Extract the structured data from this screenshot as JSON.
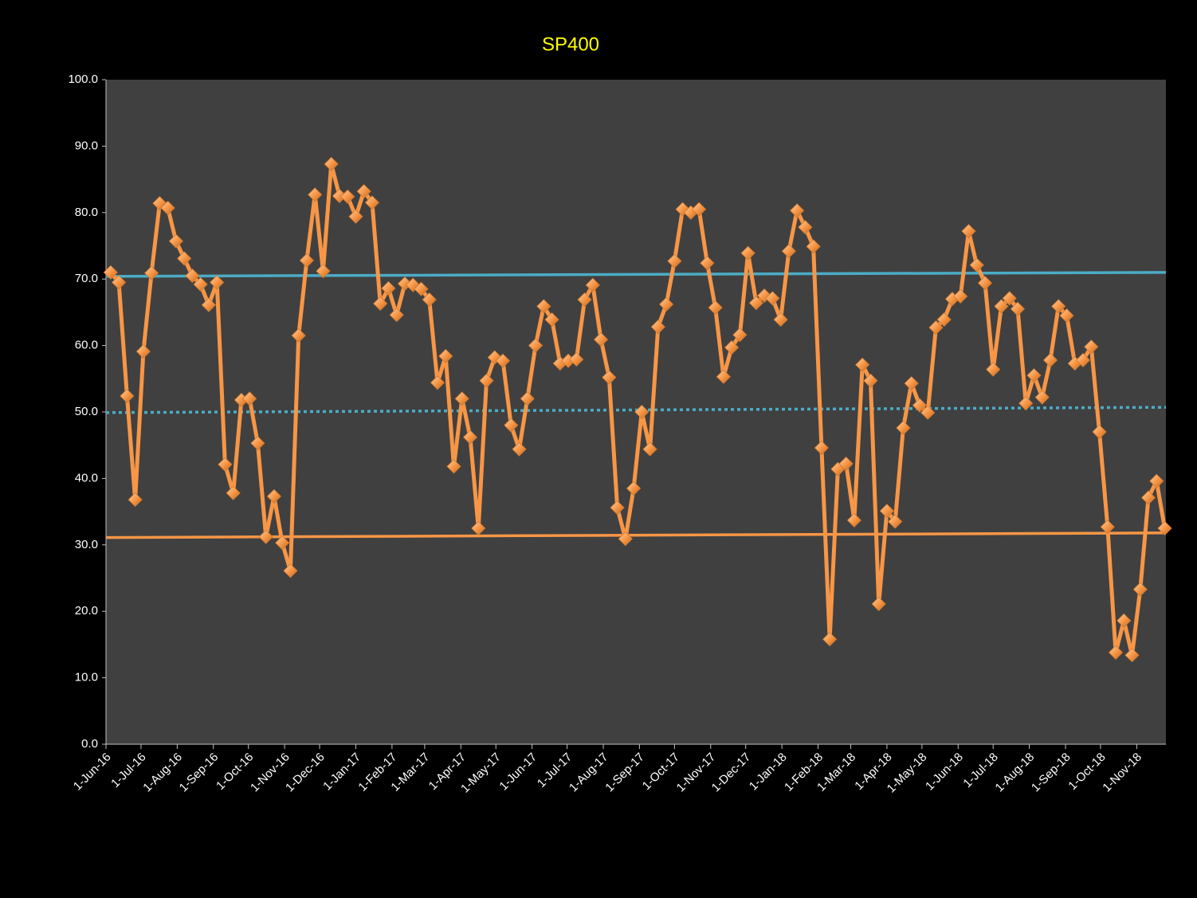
{
  "chart_data": {
    "type": "line",
    "title": "SP400",
    "x": [
      "2016-06-05",
      "2016-06-12",
      "2016-06-19",
      "2016-06-26",
      "2016-07-03",
      "2016-07-10",
      "2016-07-17",
      "2016-07-24",
      "2016-07-31",
      "2016-08-07",
      "2016-08-14",
      "2016-08-21",
      "2016-08-28",
      "2016-09-04",
      "2016-09-11",
      "2016-09-18",
      "2016-09-25",
      "2016-10-02",
      "2016-10-09",
      "2016-10-16",
      "2016-10-23",
      "2016-10-30",
      "2016-11-06",
      "2016-11-13",
      "2016-11-20",
      "2016-11-27",
      "2016-12-04",
      "2016-12-11",
      "2016-12-18",
      "2016-12-25",
      "2017-01-01",
      "2017-01-08",
      "2017-01-15",
      "2017-01-22",
      "2017-01-29",
      "2017-02-05",
      "2017-02-12",
      "2017-02-19",
      "2017-02-26",
      "2017-03-05",
      "2017-03-12",
      "2017-03-19",
      "2017-03-26",
      "2017-04-02",
      "2017-04-09",
      "2017-04-16",
      "2017-04-23",
      "2017-04-30",
      "2017-05-07",
      "2017-05-14",
      "2017-05-21",
      "2017-05-28",
      "2017-06-04",
      "2017-06-11",
      "2017-06-18",
      "2017-06-25",
      "2017-07-02",
      "2017-07-09",
      "2017-07-16",
      "2017-07-23",
      "2017-07-30",
      "2017-08-06",
      "2017-08-13",
      "2017-08-20",
      "2017-08-27",
      "2017-09-03",
      "2017-09-10",
      "2017-09-17",
      "2017-09-24",
      "2017-10-01",
      "2017-10-08",
      "2017-10-15",
      "2017-10-22",
      "2017-10-29",
      "2017-11-05",
      "2017-11-12",
      "2017-11-19",
      "2017-11-26",
      "2017-12-03",
      "2017-12-10",
      "2017-12-17",
      "2017-12-24",
      "2017-12-31",
      "2018-01-07",
      "2018-01-14",
      "2018-01-21",
      "2018-01-28",
      "2018-02-04",
      "2018-02-11",
      "2018-02-18",
      "2018-02-25",
      "2018-03-04",
      "2018-03-11",
      "2018-03-18",
      "2018-03-25",
      "2018-04-01",
      "2018-04-08",
      "2018-04-15",
      "2018-04-22",
      "2018-04-29",
      "2018-05-06",
      "2018-05-13",
      "2018-05-20",
      "2018-05-27",
      "2018-06-03",
      "2018-06-10",
      "2018-06-17",
      "2018-06-24",
      "2018-07-01",
      "2018-07-08",
      "2018-07-15",
      "2018-07-22",
      "2018-07-29",
      "2018-08-05",
      "2018-08-12",
      "2018-08-19",
      "2018-08-26",
      "2018-09-02",
      "2018-09-09",
      "2018-09-16",
      "2018-09-23",
      "2018-09-30",
      "2018-10-07",
      "2018-10-14",
      "2018-10-21",
      "2018-10-28",
      "2018-11-04",
      "2018-11-11",
      "2018-11-18",
      "2018-11-25"
    ],
    "series": [
      {
        "color": "#f79646",
        "values": [
          71.0,
          69.5,
          52.4,
          36.8,
          59.1,
          70.9,
          81.4,
          80.7,
          75.7,
          73.1,
          70.5,
          69.2,
          66.1,
          69.5,
          42.1,
          37.8,
          51.8,
          52.0,
          45.3,
          31.2,
          37.3,
          30.3,
          26.1,
          61.5,
          72.8,
          82.7,
          71.2,
          87.3,
          82.5,
          82.4,
          79.4,
          83.2,
          81.5,
          66.3,
          68.6,
          64.6,
          69.3,
          69.1,
          68.5,
          66.9,
          54.4,
          58.4,
          41.8,
          52.0,
          46.2,
          32.5,
          54.7,
          58.2,
          57.7,
          48.0,
          44.4,
          52.0,
          60.0,
          65.9,
          63.9,
          57.3,
          57.7,
          57.9,
          66.9,
          69.1,
          60.9,
          55.2,
          35.6,
          30.9,
          38.5,
          50.0,
          44.4,
          62.8,
          66.2,
          72.7,
          80.5,
          80.0,
          80.5,
          72.4,
          65.7,
          55.3,
          59.7,
          61.6,
          73.9,
          66.4,
          67.5,
          67.1,
          63.9,
          74.2,
          80.3,
          77.8,
          74.9,
          44.6,
          15.8,
          41.4,
          42.2,
          33.7,
          57.1,
          54.7,
          21.1,
          35.1,
          33.5,
          47.6,
          54.3,
          51.0,
          49.9,
          62.7,
          63.9,
          67.0,
          67.4,
          77.2,
          72.1,
          69.4,
          56.4,
          65.9,
          67.1,
          65.5,
          51.3,
          55.5,
          52.2,
          57.8,
          65.9,
          64.5,
          57.3,
          57.8,
          59.8,
          47.0,
          32.7,
          13.8,
          18.6,
          13.4,
          23.3,
          37.1,
          39.6,
          32.5
        ]
      }
    ],
    "trend_lines": [
      {
        "color": "#4bacc6",
        "dashed": false,
        "values": [
          70.4,
          71.0
        ]
      },
      {
        "color": "#4bacc6",
        "dashed": true,
        "values": [
          49.9,
          50.7
        ]
      },
      {
        "color": "#f79646",
        "dashed": false,
        "values": [
          31.1,
          31.8
        ]
      }
    ],
    "xlim": [
      "2016-06-01",
      "2018-11-26"
    ],
    "xticks": [
      {
        "value": "2016-06-01",
        "label": "1-Jun-16"
      },
      {
        "value": "2016-07-01",
        "label": "1-Jul-16"
      },
      {
        "value": "2016-08-01",
        "label": "1-Aug-16"
      },
      {
        "value": "2016-09-01",
        "label": "1-Sep-16"
      },
      {
        "value": "2016-10-01",
        "label": "1-Oct-16"
      },
      {
        "value": "2016-11-01",
        "label": "1-Nov-16"
      },
      {
        "value": "2016-12-01",
        "label": "1-Dec-16"
      },
      {
        "value": "2017-01-01",
        "label": "1-Jan-17"
      },
      {
        "value": "2017-02-01",
        "label": "1-Feb-17"
      },
      {
        "value": "2017-03-01",
        "label": "1-Mar-17"
      },
      {
        "value": "2017-04-01",
        "label": "1-Apr-17"
      },
      {
        "value": "2017-05-01",
        "label": "1-May-17"
      },
      {
        "value": "2017-06-01",
        "label": "1-Jun-17"
      },
      {
        "value": "2017-07-01",
        "label": "1-Jul-17"
      },
      {
        "value": "2017-08-01",
        "label": "1-Aug-17"
      },
      {
        "value": "2017-09-01",
        "label": "1-Sep-17"
      },
      {
        "value": "2017-10-01",
        "label": "1-Oct-17"
      },
      {
        "value": "2017-11-01",
        "label": "1-Nov-17"
      },
      {
        "value": "2017-12-01",
        "label": "1-Dec-17"
      },
      {
        "value": "2018-01-01",
        "label": "1-Jan-18"
      },
      {
        "value": "2018-02-01",
        "label": "1-Feb-18"
      },
      {
        "value": "2018-03-01",
        "label": "1-Mar-18"
      },
      {
        "value": "2018-04-01",
        "label": "1-Apr-18"
      },
      {
        "value": "2018-05-01",
        "label": "1-May-18"
      },
      {
        "value": "2018-06-01",
        "label": "1-Jun-18"
      },
      {
        "value": "2018-07-01",
        "label": "1-Jul-18"
      },
      {
        "value": "2018-08-01",
        "label": "1-Aug-18"
      },
      {
        "value": "2018-09-01",
        "label": "1-Sep-18"
      },
      {
        "value": "2018-10-01",
        "label": "1-Oct-18"
      },
      {
        "value": "2018-11-01",
        "label": "1-Nov-18"
      }
    ],
    "ylim": [
      0,
      100
    ],
    "yticks": [
      {
        "value": 0,
        "label": "0.0"
      },
      {
        "value": 10,
        "label": "10.0"
      },
      {
        "value": 20,
        "label": "20.0"
      },
      {
        "value": 30,
        "label": "30.0"
      },
      {
        "value": 40,
        "label": "40.0"
      },
      {
        "value": 50,
        "label": "50.0"
      },
      {
        "value": 60,
        "label": "60.0"
      },
      {
        "value": 70,
        "label": "70.0"
      },
      {
        "value": 80,
        "label": "80.0"
      },
      {
        "value": 90,
        "label": "90.0"
      },
      {
        "value": 100,
        "label": "100.0"
      }
    ],
    "grid": false
  }
}
